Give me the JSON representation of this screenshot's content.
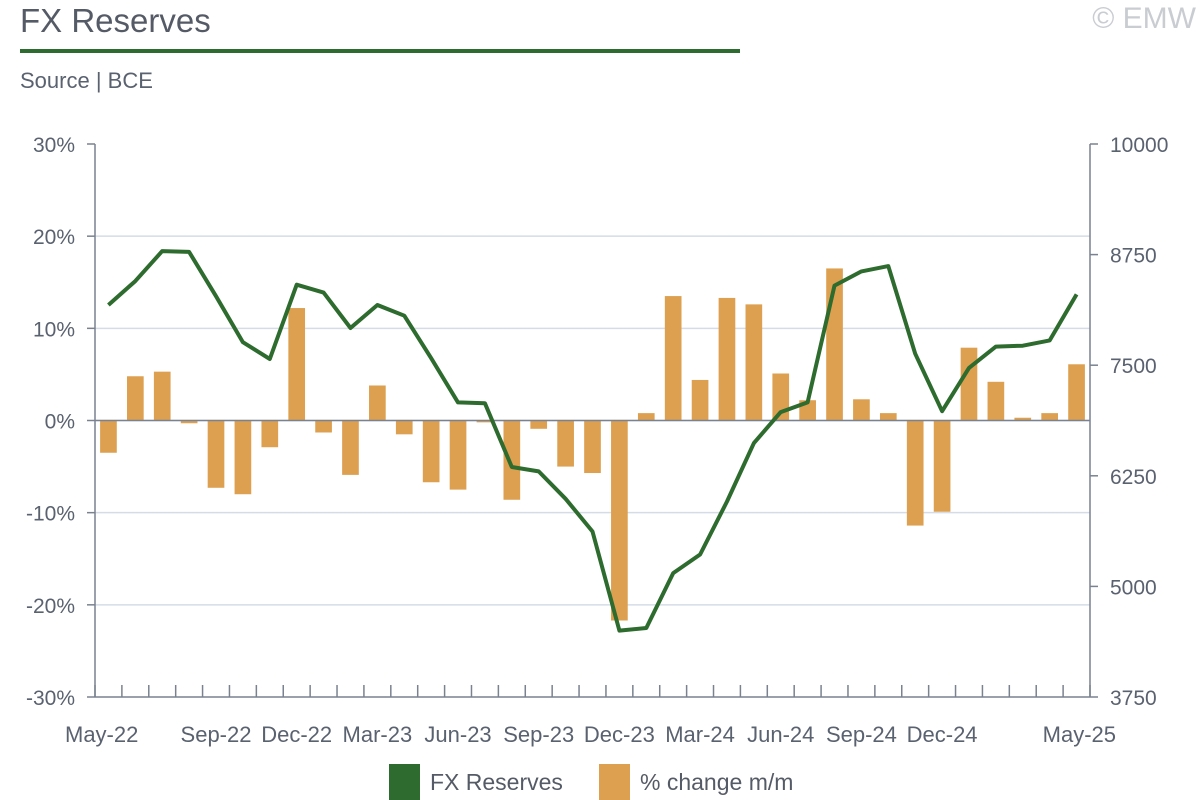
{
  "header": {
    "title": "FX Reserves",
    "subtitle": "Source | BCE",
    "copyright": "© EMW"
  },
  "colors": {
    "line": "#2e6b2e",
    "bar": "#dda050",
    "grid": "#d5dce6",
    "axis": "#7a8290"
  },
  "chart_data": {
    "type": "bar+line",
    "categories": [
      "May-22",
      "Jun-22",
      "Jul-22",
      "Aug-22",
      "Sep-22",
      "Oct-22",
      "Nov-22",
      "Dec-22",
      "Jan-23",
      "Feb-23",
      "Mar-23",
      "Apr-23",
      "May-23",
      "Jun-23",
      "Jul-23",
      "Aug-23",
      "Sep-23",
      "Oct-23",
      "Nov-23",
      "Dec-23",
      "Jan-24",
      "Feb-24",
      "Mar-24",
      "Apr-24",
      "May-24",
      "Jun-24",
      "Jul-24",
      "Aug-24",
      "Sep-24",
      "Oct-24",
      "Nov-24",
      "Dec-24",
      "Jan-25",
      "Feb-25",
      "Mar-25",
      "Apr-25",
      "May-25"
    ],
    "x_tick_labels": [
      "May-22",
      "Sep-22",
      "Dec-22",
      "Mar-23",
      "Jun-23",
      "Sep-23",
      "Dec-23",
      "Mar-24",
      "Jun-24",
      "Sep-24",
      "Dec-24",
      "May-25"
    ],
    "x_tick_label_indices": [
      0,
      4,
      7,
      10,
      13,
      16,
      19,
      22,
      25,
      28,
      31,
      36
    ],
    "series": [
      {
        "name": "% change m/m",
        "type": "bar",
        "axis": "left",
        "values": [
          -3.5,
          4.8,
          5.3,
          -0.3,
          -7.3,
          -8.0,
          -2.9,
          12.2,
          -1.3,
          -5.9,
          3.8,
          -1.5,
          -6.7,
          -7.5,
          -0.2,
          -8.6,
          -0.9,
          -5.0,
          -5.7,
          -21.7,
          0.8,
          13.5,
          4.4,
          13.3,
          12.6,
          5.1,
          2.2,
          16.5,
          2.3,
          0.8,
          -11.4,
          -9.9,
          7.9,
          4.2,
          0.3,
          0.8,
          6.1
        ]
      },
      {
        "name": "FX Reserves",
        "type": "line",
        "axis": "right",
        "values": [
          8180,
          8450,
          8790,
          8780,
          8280,
          7760,
          7570,
          8410,
          8320,
          7920,
          8180,
          8060,
          7580,
          7080,
          7070,
          6350,
          6300,
          5990,
          5620,
          4500,
          4530,
          5150,
          5360,
          5960,
          6620,
          6970,
          7080,
          8400,
          8560,
          8620,
          7630,
          6980,
          7470,
          7710,
          7720,
          7780,
          8300
        ]
      }
    ],
    "y_left": {
      "min": -30,
      "max": 30,
      "ticks": [
        "30%",
        "20%",
        "10%",
        "0%",
        "-10%",
        "-20%",
        "-30%"
      ],
      "values": [
        30,
        20,
        10,
        0,
        -10,
        -20,
        -30
      ]
    },
    "y_right": {
      "min": 3750,
      "max": 10000,
      "ticks": [
        "10000",
        "8750",
        "7500",
        "6250",
        "5000",
        "3750"
      ],
      "values": [
        10000,
        8750,
        7500,
        6250,
        5000,
        3750
      ]
    },
    "grid": true,
    "legend_position": "bottom"
  },
  "legend": {
    "items": [
      {
        "label": "FX Reserves",
        "color": "#2e6b2e"
      },
      {
        "label": "% change m/m",
        "color": "#dda050"
      }
    ]
  }
}
